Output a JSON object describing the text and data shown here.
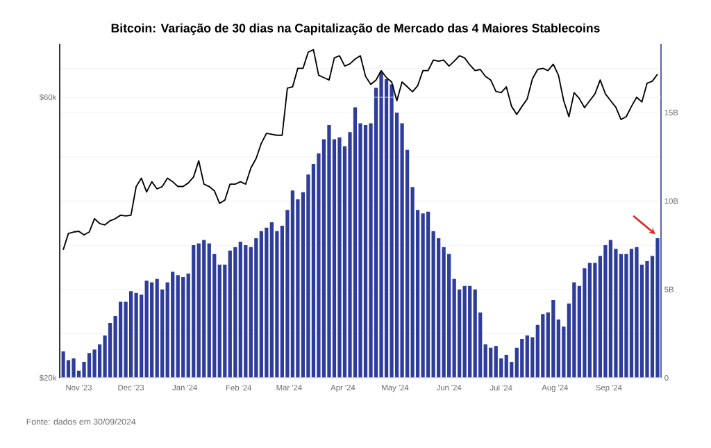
{
  "chart_data": {
    "type": "bar",
    "title": "Bitcoin: Variação de 30 dias na Capitalização de Mercado das 4 Maiores Stablecoins",
    "annotations": [
      "Fonte: dados em 30/09/2024"
    ],
    "x": [
      "2023-10-23",
      "2023-10-26",
      "2023-10-29",
      "2023-11-01",
      "2023-11-04",
      "2023-11-07",
      "2023-11-10",
      "2023-11-13",
      "2023-11-16",
      "2023-11-19",
      "2023-11-22",
      "2023-11-25",
      "2023-11-28",
      "2023-12-01",
      "2023-12-04",
      "2023-12-07",
      "2023-12-10",
      "2023-12-13",
      "2023-12-16",
      "2023-12-19",
      "2023-12-22",
      "2023-12-25",
      "2023-12-28",
      "2023-12-31",
      "2024-01-03",
      "2024-01-06",
      "2024-01-09",
      "2024-01-12",
      "2024-01-15",
      "2024-01-18",
      "2024-01-21",
      "2024-01-24",
      "2024-01-27",
      "2024-01-30",
      "2024-02-02",
      "2024-02-05",
      "2024-02-08",
      "2024-02-11",
      "2024-02-14",
      "2024-02-17",
      "2024-02-20",
      "2024-02-23",
      "2024-02-26",
      "2024-02-29",
      "2024-03-03",
      "2024-03-06",
      "2024-03-09",
      "2024-03-12",
      "2024-03-15",
      "2024-03-18",
      "2024-03-21",
      "2024-03-24",
      "2024-03-27",
      "2024-03-30",
      "2024-04-02",
      "2024-04-05",
      "2024-04-08",
      "2024-04-11",
      "2024-04-14",
      "2024-04-17",
      "2024-04-20",
      "2024-04-23",
      "2024-04-26",
      "2024-04-29",
      "2024-05-02",
      "2024-05-05",
      "2024-05-08",
      "2024-05-11",
      "2024-05-14",
      "2024-05-17",
      "2024-05-20",
      "2024-05-23",
      "2024-05-26",
      "2024-05-29",
      "2024-06-01",
      "2024-06-04",
      "2024-06-07",
      "2024-06-10",
      "2024-06-13",
      "2024-06-16",
      "2024-06-19",
      "2024-06-22",
      "2024-06-25",
      "2024-06-28",
      "2024-07-01",
      "2024-07-04",
      "2024-07-07",
      "2024-07-10",
      "2024-07-13",
      "2024-07-16",
      "2024-07-19",
      "2024-07-22",
      "2024-07-25",
      "2024-07-28",
      "2024-07-31",
      "2024-08-03",
      "2024-08-06",
      "2024-08-09",
      "2024-08-12",
      "2024-08-15",
      "2024-08-18",
      "2024-08-21",
      "2024-08-24",
      "2024-08-27",
      "2024-08-30",
      "2024-09-02",
      "2024-09-05",
      "2024-09-08",
      "2024-09-11",
      "2024-09-14",
      "2024-09-17",
      "2024-09-20",
      "2024-09-23",
      "2024-09-26",
      "2024-09-29"
    ],
    "xlim": [
      "2023-10-21",
      "2024-10-01"
    ],
    "xticks": [
      {
        "value": "2023-11-01",
        "label": "Nov '23"
      },
      {
        "value": "2023-12-01",
        "label": "Dec '23"
      },
      {
        "value": "2024-01-01",
        "label": "Jan '24"
      },
      {
        "value": "2024-02-01",
        "label": "Feb '24"
      },
      {
        "value": "2024-03-01",
        "label": "Mar '24"
      },
      {
        "value": "2024-04-01",
        "label": "Apr '24"
      },
      {
        "value": "2024-05-01",
        "label": "May '24"
      },
      {
        "value": "2024-06-01",
        "label": "Jun '24"
      },
      {
        "value": "2024-07-01",
        "label": "Jul '24"
      },
      {
        "value": "2024-08-01",
        "label": "Aug '24"
      },
      {
        "value": "2024-09-01",
        "label": "Sep '24"
      }
    ],
    "ylim": [
      20000,
      74000
    ],
    "yticks": [
      {
        "value": 20000,
        "label": "$20k"
      },
      {
        "value": 60000,
        "label": "$60k"
      }
    ],
    "y2lim": [
      0,
      18.9
    ],
    "y2ticks": [
      0,
      {
        "value": 2.5,
        "label": null
      },
      {
        "value": 5,
        "label": "5B"
      },
      {
        "value": 7.5,
        "label": null
      },
      {
        "value": 10,
        "label": "10B"
      },
      {
        "value": 12.5,
        "label": null
      },
      {
        "value": 15,
        "label": "15B"
      },
      {
        "value": 17.5,
        "label": null
      }
    ],
    "log": "y",
    "grid": "y",
    "series": [
      {
        "axis": "y2",
        "color": "#2e3d9a",
        "values": [
          1.5,
          1.0,
          1.1,
          0.4,
          0.9,
          1.4,
          1.6,
          1.9,
          2.4,
          3.1,
          3.5,
          4.3,
          4.3,
          4.9,
          4.8,
          4.7,
          5.5,
          5.4,
          5.6,
          5.0,
          5.4,
          6.0,
          5.8,
          5.7,
          5.9,
          7.5,
          7.6,
          7.8,
          7.6,
          7.0,
          6.4,
          6.4,
          7.2,
          7.4,
          7.7,
          7.5,
          7.4,
          7.9,
          8.3,
          8.5,
          8.8,
          8.3,
          8.6,
          9.5,
          10.6,
          10.1,
          10.5,
          11.5,
          12.1,
          12.7,
          13.5,
          14.3,
          13.5,
          13.6,
          13.1,
          13.9,
          15.3,
          14.4,
          14.3,
          14.4,
          16.4,
          17.3,
          16.9,
          16.6,
          15.0,
          14.4,
          12.9,
          10.8,
          9.5,
          9.3,
          9.4,
          8.3,
          7.9,
          7.4,
          7.0,
          5.6,
          5.0,
          5.2,
          5.2,
          5.0,
          3.7,
          1.9,
          1.7,
          1.8,
          1.1,
          1.3,
          0.9,
          1.7,
          2.2,
          2.4,
          2.3,
          3.0,
          3.6,
          3.7,
          4.4,
          3.3,
          2.9,
          4.2,
          5.4,
          5.2,
          6.2,
          6.5,
          6.5,
          6.9,
          7.5,
          7.8,
          7.3,
          7.0,
          7.0,
          7.3,
          7.4,
          6.4,
          6.6,
          6.9,
          7.9
        ]
      },
      {
        "type": "line",
        "axis": "y",
        "color": "#000000",
        "values": [
          33000,
          35200,
          35400,
          35500,
          35000,
          35400,
          37300,
          36600,
          36400,
          37000,
          37300,
          37800,
          37700,
          37800,
          42300,
          43700,
          41400,
          43100,
          41900,
          42300,
          43700,
          43100,
          42300,
          42300,
          42900,
          43900,
          46800,
          42700,
          42300,
          41600,
          39600,
          40100,
          42700,
          42700,
          43100,
          42700,
          45500,
          47200,
          50100,
          52100,
          51900,
          51700,
          51700,
          62200,
          62500,
          67200,
          67200,
          71600,
          72300,
          65400,
          64800,
          64200,
          70000,
          70600,
          67800,
          68400,
          69700,
          70600,
          65100,
          63100,
          64200,
          66600,
          64800,
          63700,
          59200,
          63700,
          62500,
          61300,
          62800,
          66600,
          66600,
          69400,
          69100,
          69400,
          67800,
          69100,
          70600,
          70000,
          68100,
          66600,
          66900,
          65100,
          64200,
          61400,
          61100,
          62500,
          57900,
          56100,
          57900,
          59600,
          64500,
          66900,
          67200,
          66600,
          68300,
          65400,
          59200,
          55600,
          61100,
          59700,
          57600,
          59200,
          60800,
          64200,
          60800,
          59200,
          57700,
          55000,
          55600,
          57900,
          60000,
          58900,
          63400,
          63900,
          65700
        ]
      }
    ]
  }
}
